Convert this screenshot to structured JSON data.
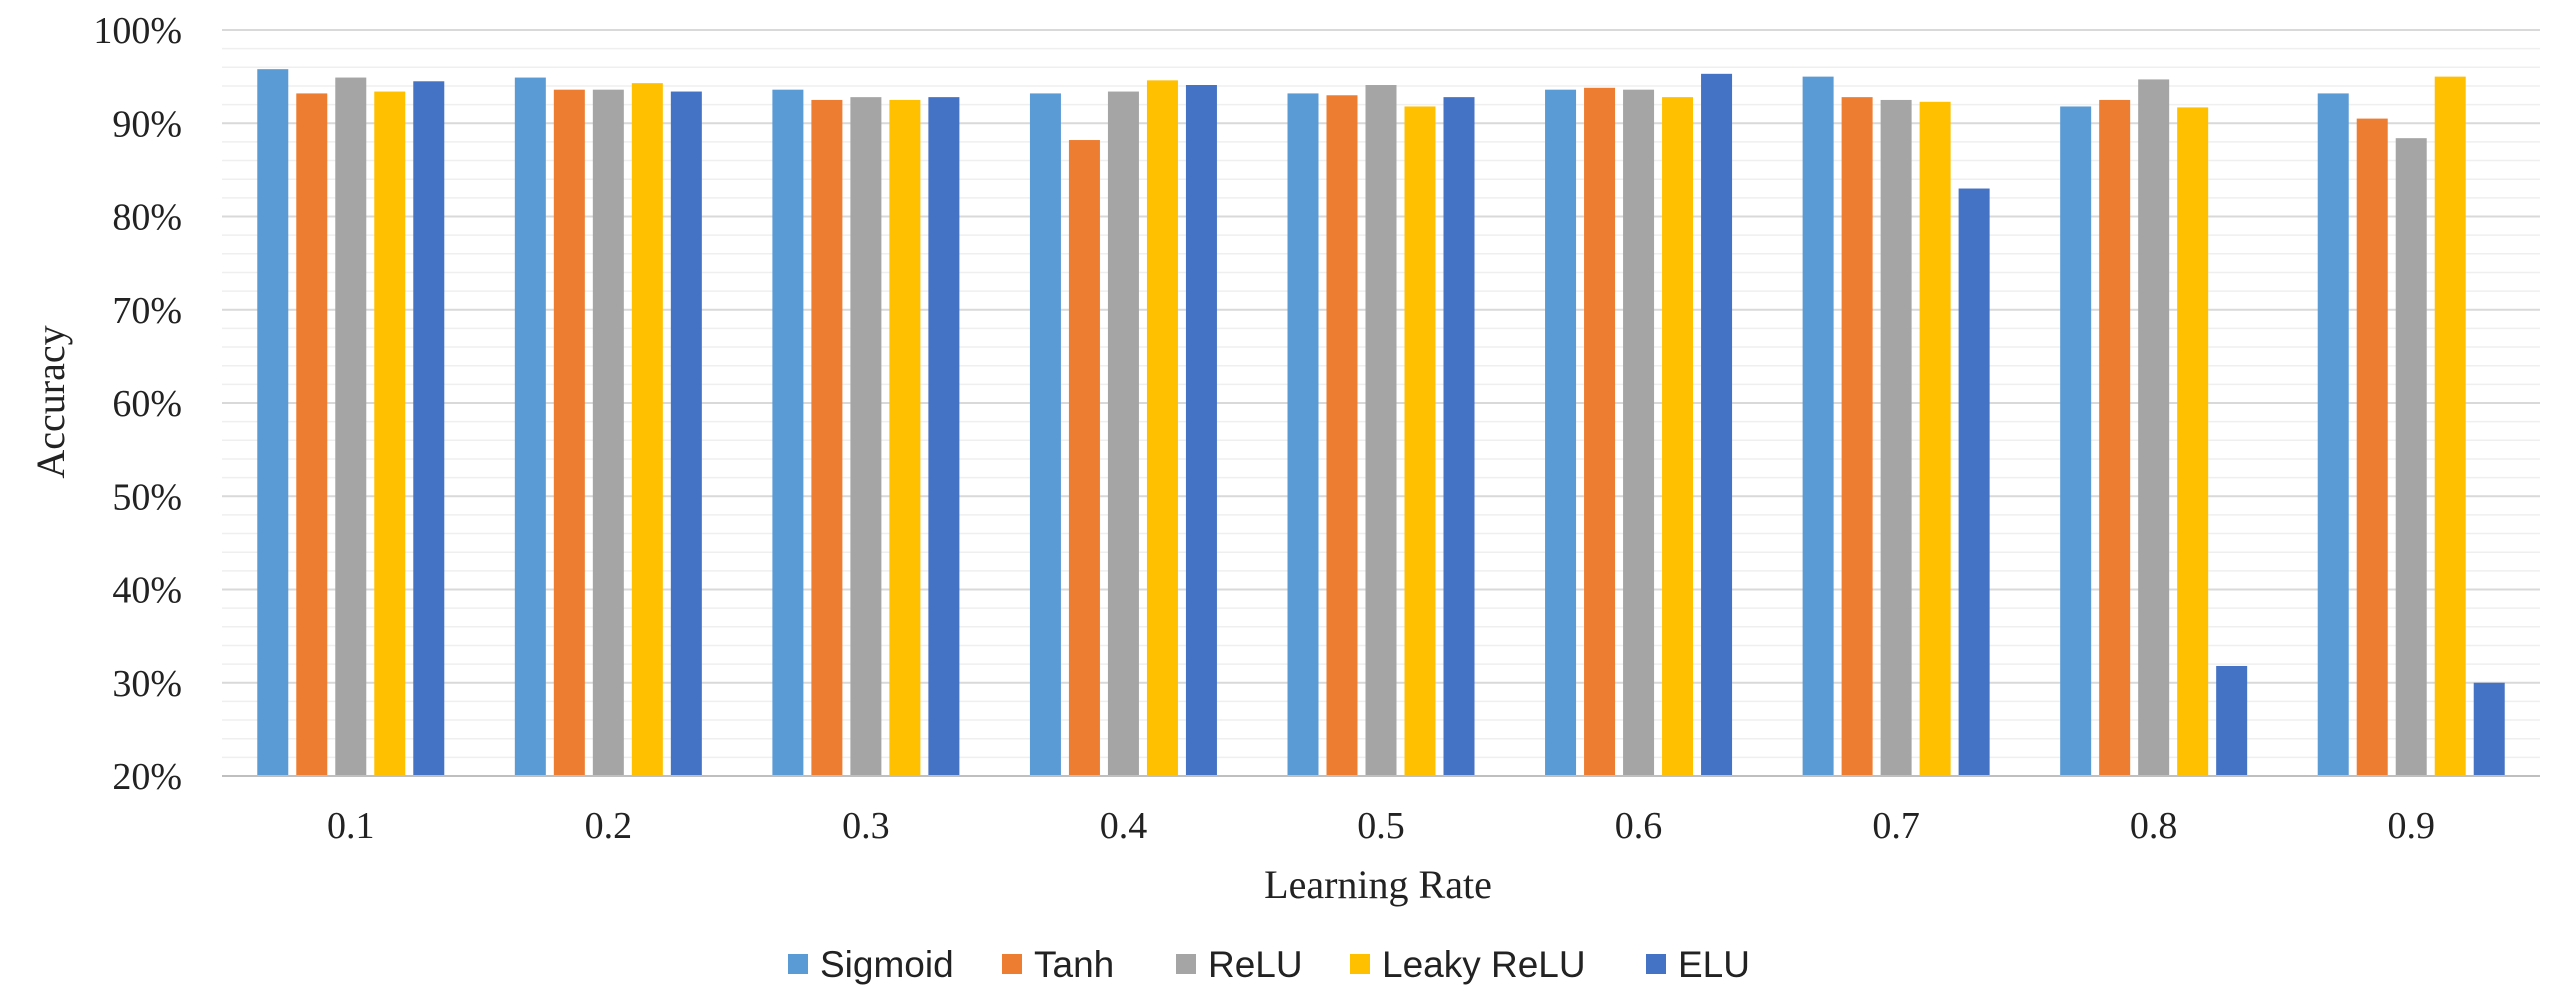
{
  "chart_data": {
    "type": "bar",
    "title": "",
    "xlabel": "Learning Rate",
    "ylabel": "Accuracy",
    "categories": [
      "0.1",
      "0.2",
      "0.3",
      "0.4",
      "0.5",
      "0.6",
      "0.7",
      "0.8",
      "0.9"
    ],
    "ylim": [
      20,
      100
    ],
    "y_tick_step": 10,
    "y_minor_step": 2,
    "y_tick_format": "percent",
    "y_ticks": [
      "20%",
      "30%",
      "40%",
      "50%",
      "60%",
      "70%",
      "80%",
      "90%",
      "100%"
    ],
    "grid": true,
    "legend_position": "bottom",
    "series": [
      {
        "name": "Sigmoid",
        "color": "#5B9BD5",
        "values": [
          95.8,
          94.9,
          93.6,
          93.2,
          93.2,
          93.6,
          95.0,
          91.8,
          93.2
        ]
      },
      {
        "name": "Tanh",
        "color": "#ED7D31",
        "values": [
          93.2,
          93.6,
          92.5,
          88.2,
          93.0,
          93.8,
          92.8,
          92.5,
          90.5
        ]
      },
      {
        "name": "ReLU",
        "color": "#A5A5A5",
        "values": [
          94.9,
          93.6,
          92.8,
          93.4,
          94.1,
          93.6,
          92.5,
          94.7,
          88.4
        ]
      },
      {
        "name": "Leaky ReLU",
        "color": "#FFC000",
        "values": [
          93.4,
          94.3,
          92.5,
          94.6,
          91.8,
          92.8,
          92.3,
          91.7,
          95.0
        ]
      },
      {
        "name": "ELU",
        "color": "#4472C4",
        "values": [
          94.5,
          93.4,
          92.8,
          94.1,
          92.8,
          95.3,
          83.0,
          31.8,
          30.0
        ]
      }
    ]
  }
}
